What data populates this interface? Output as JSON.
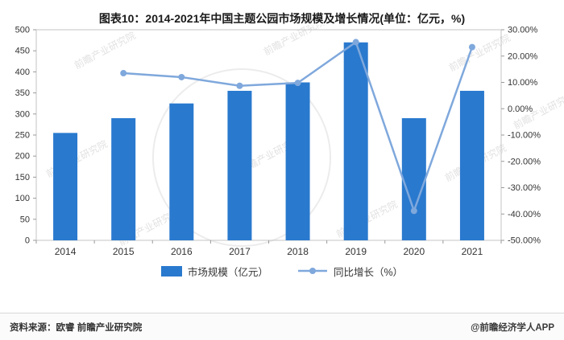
{
  "title": "图表10：2014-2021年中国主题公园市场规模及增长情况(单位：亿元，%)",
  "footer": {
    "source": "资料来源：欧睿 前瞻产业研究院",
    "brand": "@前瞻经济学人APP"
  },
  "chart_data": {
    "type": "bar+line combo",
    "title": "图表10：2014-2021年中国主题公园市场规模及增长情况(单位：亿元，%)",
    "categories": [
      "2014",
      "2015",
      "2016",
      "2017",
      "2018",
      "2019",
      "2020",
      "2021"
    ],
    "series": [
      {
        "name": "市场规模（亿元）",
        "type": "bar",
        "axis": "left",
        "values": [
          255,
          290,
          325,
          355,
          375,
          470,
          290,
          355
        ]
      },
      {
        "name": "同比增长（%）",
        "type": "line",
        "axis": "right",
        "values": [
          null,
          13.5,
          12.0,
          8.7,
          9.8,
          25.3,
          -38.8,
          23.4
        ]
      }
    ],
    "left_axis": {
      "min": 0,
      "max": 500,
      "step": 50
    },
    "right_axis": {
      "min": -50,
      "max": 30,
      "ticks": [
        {
          "label": "30.00%",
          "value": 30
        },
        {
          "label": "20.00%",
          "value": 20
        },
        {
          "label": "10.00%",
          "value": 10
        },
        {
          "label": "0.00%",
          "value": 0
        },
        {
          "label": "-10.00%",
          "value": -10
        },
        {
          "label": "-20.00%",
          "value": -20
        },
        {
          "label": "-30.00%",
          "value": -30
        },
        {
          "label": "-40.00%",
          "value": -40
        },
        {
          "label": "-50.00%",
          "value": -50
        }
      ]
    },
    "legend_position": "bottom",
    "grid": false,
    "colors": {
      "bar": "#2979CE",
      "line": "#7FA8DC"
    },
    "watermark": "前瞻产业研究院"
  }
}
